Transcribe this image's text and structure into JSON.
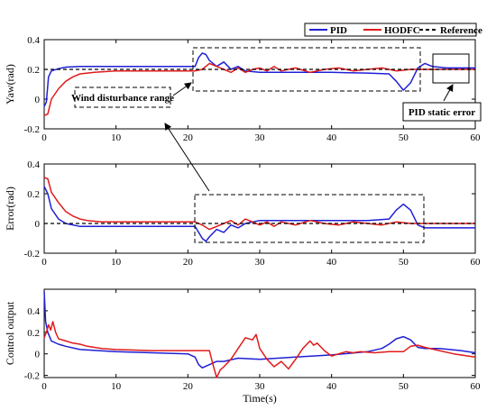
{
  "colors": {
    "pid": "#1f1fd6",
    "hodfc": "#e01b1b",
    "reference": "#000000"
  },
  "legend": {
    "items": [
      "PID",
      "HODFC",
      "Reference"
    ],
    "placement": "top-right"
  },
  "annotations": {
    "wind": "Wind disturbance range",
    "pid_static": "PID static error"
  },
  "chart_data": [
    {
      "type": "line",
      "ylabel": "Yaw(rad)",
      "xlabel": "",
      "xlim": [
        0,
        60
      ],
      "ylim": [
        -0.2,
        0.4
      ],
      "xticks": [
        "0",
        "10",
        "20",
        "30",
        "40",
        "50",
        "60"
      ],
      "yticks": [
        "-0.2",
        "0",
        "0.2",
        "0.4"
      ],
      "series": [
        {
          "name": "PID",
          "points": [
            [
              0,
              -0.05
            ],
            [
              0.3,
              -0.02
            ],
            [
              0.6,
              0.15
            ],
            [
              1,
              0.19
            ],
            [
              2,
              0.205
            ],
            [
              3,
              0.215
            ],
            [
              5,
              0.22
            ],
            [
              21,
              0.22
            ],
            [
              21.5,
              0.28
            ],
            [
              22,
              0.31
            ],
            [
              22.5,
              0.3
            ],
            [
              23,
              0.26
            ],
            [
              24,
              0.22
            ],
            [
              25,
              0.25
            ],
            [
              26,
              0.2
            ],
            [
              27,
              0.22
            ],
            [
              28,
              0.19
            ],
            [
              30,
              0.18
            ],
            [
              35,
              0.18
            ],
            [
              40,
              0.18
            ],
            [
              45,
              0.175
            ],
            [
              48,
              0.17
            ],
            [
              49,
              0.12
            ],
            [
              50,
              0.06
            ],
            [
              51,
              0.11
            ],
            [
              52,
              0.21
            ],
            [
              53,
              0.24
            ],
            [
              54,
              0.22
            ],
            [
              56,
              0.21
            ],
            [
              60,
              0.21
            ]
          ]
        },
        {
          "name": "HODFC",
          "points": [
            [
              0,
              -0.11
            ],
            [
              0.5,
              -0.1
            ],
            [
              1,
              0.0
            ],
            [
              2,
              0.07
            ],
            [
              3,
              0.12
            ],
            [
              4,
              0.15
            ],
            [
              5,
              0.17
            ],
            [
              7,
              0.18
            ],
            [
              10,
              0.19
            ],
            [
              15,
              0.19
            ],
            [
              21,
              0.19
            ],
            [
              22,
              0.2
            ],
            [
              23,
              0.24
            ],
            [
              24,
              0.22
            ],
            [
              25,
              0.2
            ],
            [
              26,
              0.18
            ],
            [
              27,
              0.21
            ],
            [
              28,
              0.18
            ],
            [
              29,
              0.2
            ],
            [
              30,
              0.21
            ],
            [
              31,
              0.19
            ],
            [
              32,
              0.22
            ],
            [
              33,
              0.19
            ],
            [
              34,
              0.2
            ],
            [
              35,
              0.21
            ],
            [
              37,
              0.18
            ],
            [
              39,
              0.2
            ],
            [
              41,
              0.21
            ],
            [
              43,
              0.19
            ],
            [
              45,
              0.2
            ],
            [
              47,
              0.21
            ],
            [
              49,
              0.19
            ],
            [
              51,
              0.2
            ],
            [
              53,
              0.2
            ],
            [
              55,
              0.2
            ],
            [
              60,
              0.2
            ]
          ]
        },
        {
          "name": "Reference",
          "points": [
            [
              0,
              0.2
            ],
            [
              60,
              0.2
            ]
          ]
        }
      ]
    },
    {
      "type": "line",
      "ylabel": "Error(rad)",
      "xlabel": "",
      "xlim": [
        0,
        60
      ],
      "ylim": [
        -0.2,
        0.4
      ],
      "xticks": [
        "0",
        "10",
        "20",
        "30",
        "40",
        "50",
        "60"
      ],
      "yticks": [
        "-0.2",
        "0",
        "0.2",
        "0.4"
      ],
      "series": [
        {
          "name": "PID",
          "points": [
            [
              0,
              0.25
            ],
            [
              0.5,
              0.2
            ],
            [
              1,
              0.1
            ],
            [
              2,
              0.03
            ],
            [
              3,
              0.0
            ],
            [
              5,
              -0.02
            ],
            [
              10,
              -0.02
            ],
            [
              21,
              -0.02
            ],
            [
              22,
              -0.1
            ],
            [
              22.5,
              -0.12
            ],
            [
              23,
              -0.09
            ],
            [
              24,
              -0.04
            ],
            [
              25,
              -0.06
            ],
            [
              26,
              -0.01
            ],
            [
              27,
              -0.03
            ],
            [
              28,
              0.0
            ],
            [
              30,
              0.02
            ],
            [
              35,
              0.02
            ],
            [
              40,
              0.02
            ],
            [
              45,
              0.02
            ],
            [
              48,
              0.03
            ],
            [
              49,
              0.09
            ],
            [
              50,
              0.13
            ],
            [
              51,
              0.09
            ],
            [
              52,
              -0.01
            ],
            [
              53,
              -0.03
            ],
            [
              55,
              -0.03
            ],
            [
              60,
              -0.03
            ]
          ]
        },
        {
          "name": "HODFC",
          "points": [
            [
              0,
              0.31
            ],
            [
              0.5,
              0.3
            ],
            [
              1,
              0.21
            ],
            [
              2,
              0.14
            ],
            [
              3,
              0.08
            ],
            [
              4,
              0.05
            ],
            [
              5,
              0.03
            ],
            [
              6,
              0.02
            ],
            [
              8,
              0.01
            ],
            [
              10,
              0.01
            ],
            [
              15,
              0.01
            ],
            [
              21,
              0.01
            ],
            [
              22,
              -0.01
            ],
            [
              23,
              -0.04
            ],
            [
              24,
              -0.02
            ],
            [
              25,
              0.0
            ],
            [
              26,
              0.02
            ],
            [
              27,
              -0.01
            ],
            [
              28,
              0.03
            ],
            [
              29,
              0.01
            ],
            [
              30,
              -0.01
            ],
            [
              31,
              0.01
            ],
            [
              32,
              -0.02
            ],
            [
              33,
              0.01
            ],
            [
              34,
              0.0
            ],
            [
              35,
              -0.01
            ],
            [
              37,
              0.02
            ],
            [
              39,
              0.0
            ],
            [
              41,
              -0.01
            ],
            [
              43,
              0.01
            ],
            [
              45,
              0.0
            ],
            [
              47,
              -0.01
            ],
            [
              49,
              0.01
            ],
            [
              51,
              0.0
            ],
            [
              53,
              0.0
            ],
            [
              55,
              0.0
            ],
            [
              60,
              0.0
            ]
          ]
        },
        {
          "name": "Reference",
          "points": [
            [
              0,
              0.0
            ],
            [
              60,
              0.0
            ]
          ]
        }
      ]
    },
    {
      "type": "line",
      "ylabel": "Control output",
      "xlabel": "Time(s)",
      "xlim": [
        0,
        60
      ],
      "ylim": [
        -0.22,
        0.6
      ],
      "xticks": [
        "0",
        "10",
        "20",
        "30",
        "40",
        "50",
        "60"
      ],
      "yticks": [
        "-0.2",
        "0",
        "0.2",
        "0.4"
      ],
      "series": [
        {
          "name": "PID",
          "points": [
            [
              0,
              0.58
            ],
            [
              0.2,
              0.3
            ],
            [
              0.5,
              0.2
            ],
            [
              1,
              0.12
            ],
            [
              2,
              0.09
            ],
            [
              3,
              0.07
            ],
            [
              5,
              0.04
            ],
            [
              10,
              0.02
            ],
            [
              15,
              0.01
            ],
            [
              20,
              0.0
            ],
            [
              21,
              -0.03
            ],
            [
              21.5,
              -0.1
            ],
            [
              22,
              -0.13
            ],
            [
              23,
              -0.1
            ],
            [
              24,
              -0.07
            ],
            [
              25,
              -0.07
            ],
            [
              27,
              -0.04
            ],
            [
              30,
              -0.05
            ],
            [
              35,
              -0.03
            ],
            [
              40,
              -0.01
            ],
            [
              45,
              0.02
            ],
            [
              47,
              0.05
            ],
            [
              48,
              0.09
            ],
            [
              49,
              0.14
            ],
            [
              50,
              0.16
            ],
            [
              51,
              0.13
            ],
            [
              52,
              0.06
            ],
            [
              53,
              0.05
            ],
            [
              55,
              0.05
            ],
            [
              58,
              0.03
            ],
            [
              60,
              0.01
            ]
          ]
        },
        {
          "name": "HODFC",
          "points": [
            [
              0,
              0.15
            ],
            [
              0.3,
              0.2
            ],
            [
              0.6,
              0.27
            ],
            [
              0.9,
              0.22
            ],
            [
              1.2,
              0.3
            ],
            [
              1.6,
              0.2
            ],
            [
              2,
              0.14
            ],
            [
              3,
              0.12
            ],
            [
              4,
              0.1
            ],
            [
              5,
              0.09
            ],
            [
              6,
              0.07
            ],
            [
              8,
              0.05
            ],
            [
              10,
              0.04
            ],
            [
              15,
              0.03
            ],
            [
              20,
              0.03
            ],
            [
              23,
              0.03
            ],
            [
              23.5,
              -0.1
            ],
            [
              24,
              -0.22
            ],
            [
              24.5,
              -0.15
            ],
            [
              25,
              -0.12
            ],
            [
              26,
              -0.05
            ],
            [
              27,
              0.05
            ],
            [
              28,
              0.15
            ],
            [
              29,
              0.13
            ],
            [
              29.5,
              0.18
            ],
            [
              30,
              0.05
            ],
            [
              31,
              -0.05
            ],
            [
              32,
              -0.12
            ],
            [
              33,
              -0.07
            ],
            [
              34,
              -0.14
            ],
            [
              35,
              -0.05
            ],
            [
              36,
              0.05
            ],
            [
              37,
              0.12
            ],
            [
              37.5,
              0.08
            ],
            [
              38,
              0.1
            ],
            [
              39,
              0.03
            ],
            [
              40,
              -0.02
            ],
            [
              41,
              0.0
            ],
            [
              42,
              0.02
            ],
            [
              43,
              0.01
            ],
            [
              44,
              0.02
            ],
            [
              46,
              0.01
            ],
            [
              48,
              0.02
            ],
            [
              50,
              0.02
            ],
            [
              51,
              0.07
            ],
            [
              52,
              0.08
            ],
            [
              53,
              0.06
            ],
            [
              55,
              0.03
            ],
            [
              57,
              0.0
            ],
            [
              59,
              -0.02
            ],
            [
              60,
              -0.03
            ]
          ]
        }
      ]
    }
  ]
}
